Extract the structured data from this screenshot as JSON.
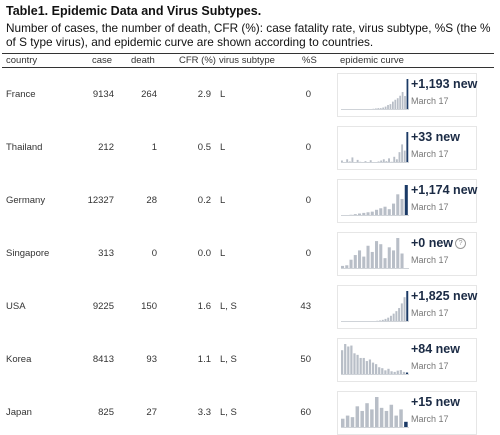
{
  "title": "Table1. Epidemic Data and Virus Subtypes.",
  "caption": "Number of cases, the number of death,  CFR (%): case fatality rate, virus subtype, %S (the % of S type virus), and epidemic curve are shown according to countries.",
  "columns": {
    "country": "country",
    "case": "case",
    "death": "death",
    "cfr": "CFR (%)",
    "subtype": "virus subtype",
    "s_pct": "%S",
    "curve": "epidemic curve"
  },
  "colors": {
    "bar": "#b8bec7",
    "bar_last": "#1b3a66",
    "rule": "#333333"
  },
  "rows": [
    {
      "country": "France",
      "case": "9134",
      "death": "264",
      "cfr": "2.9",
      "subtype": "L",
      "s_pct": "0",
      "new_label": "+1,193 new",
      "date": "March 17",
      "bars": [
        0,
        0,
        1,
        0,
        0,
        0,
        1,
        1,
        1,
        2,
        2,
        3,
        3,
        4,
        5,
        6,
        6,
        8,
        11,
        16,
        19,
        27,
        33,
        38,
        46,
        58,
        45,
        100
      ]
    },
    {
      "country": "Thailand",
      "case": "212",
      "death": "1",
      "cfr": "0.5",
      "subtype": "L",
      "s_pct": "0",
      "new_label": "+33 new",
      "date": "March 17",
      "bars": [
        8,
        0,
        12,
        5,
        18,
        0,
        10,
        4,
        0,
        6,
        2,
        9,
        3,
        0,
        5,
        8,
        12,
        6,
        15,
        4,
        20,
        12,
        35,
        60,
        40,
        100
      ]
    },
    {
      "country": "Germany",
      "case": "12327",
      "death": "28",
      "cfr": "0.2",
      "subtype": "L",
      "s_pct": "0",
      "new_label": "+1,174 new",
      "date": "March 17",
      "bars": [
        2,
        3,
        4,
        6,
        8,
        10,
        12,
        14,
        20,
        25,
        30,
        22,
        40,
        70,
        55,
        100
      ]
    },
    {
      "country": "Singapore",
      "case": "313",
      "death": "0",
      "cfr": "0.0",
      "subtype": "L",
      "s_pct": "0",
      "new_label": "+0 new",
      "date": "March 17",
      "bars": [
        10,
        12,
        30,
        45,
        60,
        40,
        75,
        55,
        90,
        80,
        35,
        70,
        60,
        100,
        50,
        3
      ]
    },
    {
      "country": "USA",
      "case": "9225",
      "death": "150",
      "cfr": "1.6",
      "subtype": "L, S",
      "s_pct": "43",
      "new_label": "+1,825 new",
      "date": "March 17",
      "bars": [
        0,
        0,
        0,
        0,
        1,
        0,
        0,
        0,
        1,
        1,
        2,
        2,
        3,
        4,
        5,
        7,
        10,
        14,
        20,
        27,
        35,
        45,
        60,
        80,
        100
      ]
    },
    {
      "country": "Korea",
      "case": "8413",
      "death": "93",
      "cfr": "1.1",
      "subtype": "L, S",
      "s_pct": "50",
      "new_label": "+84 new",
      "date": "March 17",
      "bars": [
        80,
        100,
        92,
        95,
        70,
        65,
        55,
        55,
        45,
        50,
        40,
        35,
        25,
        22,
        15,
        20,
        12,
        10,
        14,
        16,
        10,
        8
      ]
    },
    {
      "country": "Japan",
      "case": "825",
      "death": "27",
      "cfr": "3.3",
      "subtype": "L, S",
      "s_pct": "60",
      "new_label": "+15 new",
      "date": "March 17",
      "bars": [
        30,
        40,
        35,
        70,
        55,
        80,
        60,
        100,
        65,
        55,
        75,
        40,
        60,
        20
      ]
    }
  ]
}
